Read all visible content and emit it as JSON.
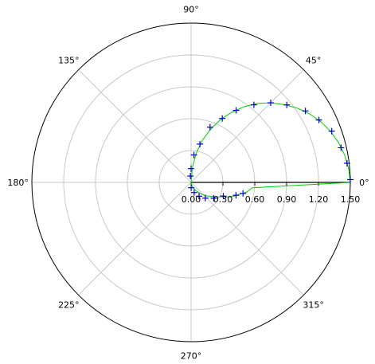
{
  "chart_data": {
    "type": "scatter",
    "coordinate_system": "polar",
    "title": "",
    "radial_ticks": [
      {
        "value": 0.0,
        "label": "0.00"
      },
      {
        "value": 0.3,
        "label": "0.30"
      },
      {
        "value": 0.6,
        "label": "0.60"
      },
      {
        "value": 0.9,
        "label": "0.90"
      },
      {
        "value": 1.2,
        "label": "1.20"
      },
      {
        "value": 1.5,
        "label": "1.50"
      }
    ],
    "radial_range": [
      0,
      1.5
    ],
    "angular_ticks": [
      {
        "angle": 0,
        "label": "0°"
      },
      {
        "angle": 45,
        "label": "45°"
      },
      {
        "angle": 90,
        "label": "90°"
      },
      {
        "angle": 135,
        "label": "135°"
      },
      {
        "angle": 180,
        "label": "180°"
      },
      {
        "angle": 225,
        "label": "225°"
      },
      {
        "angle": 270,
        "label": "270°"
      },
      {
        "angle": 315,
        "label": "315°"
      }
    ],
    "grid": true,
    "colors": {
      "curve": "#00cc00",
      "markers": "#0000cc",
      "grid": "#c8c8c8",
      "axis": "#000000"
    },
    "series": [
      {
        "kind": "line",
        "color": "#00cc00",
        "points": [
          {
            "theta": -90,
            "r": 0.0
          },
          {
            "theta": -80,
            "r": 0.02
          },
          {
            "theta": -70,
            "r": 0.05
          },
          {
            "theta": -60,
            "r": 0.09
          },
          {
            "theta": -50,
            "r": 0.14
          },
          {
            "theta": -40,
            "r": 0.2
          },
          {
            "theta": -30,
            "r": 0.27
          },
          {
            "theta": -20,
            "r": 0.4
          },
          {
            "theta": -10,
            "r": 0.53
          },
          {
            "theta": -5,
            "r": 0.58
          },
          {
            "theta": 0,
            "r": 1.5
          },
          {
            "theta": 5,
            "r": 1.49
          },
          {
            "theta": 10,
            "r": 1.47
          },
          {
            "theta": 15,
            "r": 1.44
          },
          {
            "theta": 20,
            "r": 1.4
          },
          {
            "theta": 25,
            "r": 1.35
          },
          {
            "theta": 30,
            "r": 1.29
          },
          {
            "theta": 35,
            "r": 1.22
          },
          {
            "theta": 40,
            "r": 1.14
          },
          {
            "theta": 45,
            "r": 1.06
          },
          {
            "theta": 50,
            "r": 0.97
          },
          {
            "theta": 55,
            "r": 0.87
          },
          {
            "theta": 60,
            "r": 0.76
          },
          {
            "theta": 65,
            "r": 0.65
          },
          {
            "theta": 70,
            "r": 0.53
          },
          {
            "theta": 75,
            "r": 0.41
          },
          {
            "theta": 80,
            "r": 0.28
          },
          {
            "theta": 85,
            "r": 0.14
          },
          {
            "theta": 90,
            "r": 0.0
          }
        ]
      },
      {
        "kind": "markers",
        "marker": "plus",
        "color": "#0000cc",
        "points": [
          {
            "theta": 1,
            "r": 1.5
          },
          {
            "theta": 7,
            "r": 1.48
          },
          {
            "theta": 13,
            "r": 1.45
          },
          {
            "theta": 20,
            "r": 1.41
          },
          {
            "theta": 26,
            "r": 1.34
          },
          {
            "theta": 32,
            "r": 1.27
          },
          {
            "theta": 39,
            "r": 1.16
          },
          {
            "theta": 45,
            "r": 1.06
          },
          {
            "theta": 51,
            "r": 0.94
          },
          {
            "theta": 58,
            "r": 0.8
          },
          {
            "theta": 64,
            "r": 0.67
          },
          {
            "theta": 71,
            "r": 0.55
          },
          {
            "theta": 77,
            "r": 0.37
          },
          {
            "theta": 84,
            "r": 0.26
          },
          {
            "theta": 90,
            "r": 0.13
          },
          {
            "theta": 96,
            "r": 0.06
          },
          {
            "theta": -89,
            "r": 0.05
          },
          {
            "theta": -73,
            "r": 0.1
          },
          {
            "theta": -60,
            "r": 0.15
          },
          {
            "theta": -48,
            "r": 0.2
          },
          {
            "theta": -35,
            "r": 0.26
          },
          {
            "theta": -23,
            "r": 0.33
          },
          {
            "theta": -16,
            "r": 0.44
          },
          {
            "theta": -12,
            "r": 0.5
          }
        ]
      }
    ]
  }
}
